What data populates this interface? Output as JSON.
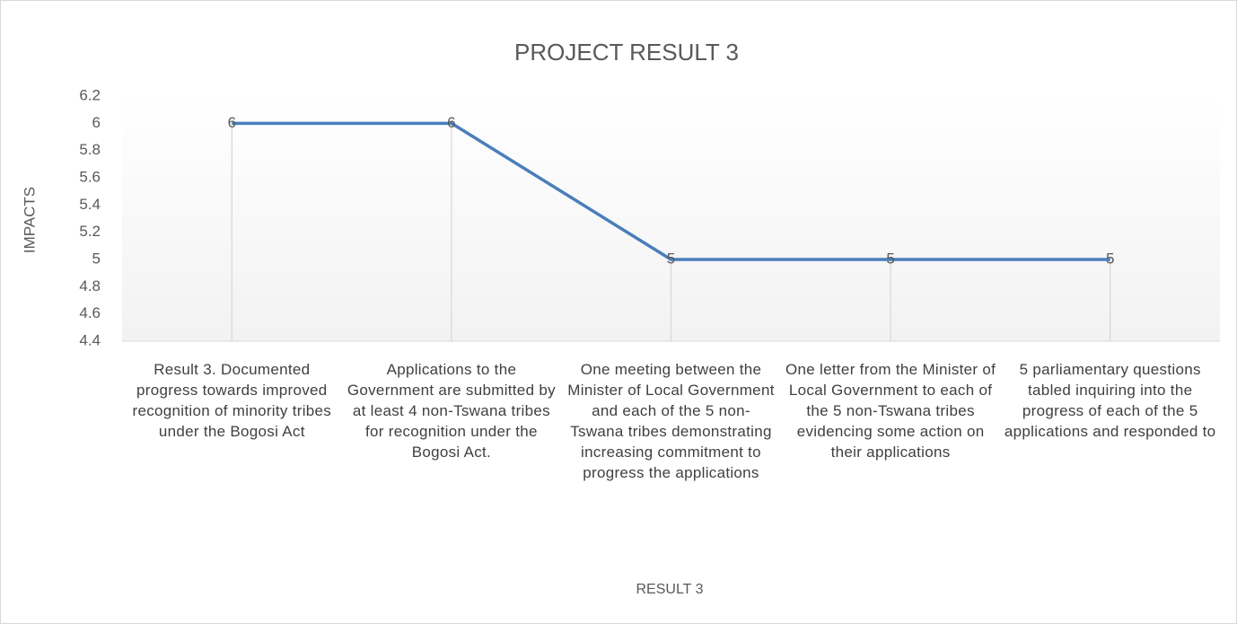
{
  "chart_data": {
    "type": "line",
    "title": "PROJECT RESULT 3",
    "x_label": "RESULT 3",
    "y_label": "IMPACTS",
    "categories": [
      "Result 3. Documented progress towards improved recognition of minority tribes under the Bogosi Act",
      "Applications to the Government are submitted by at least 4 non-Tswana tribes for recognition  under the Bogosi Act.",
      "One meeting between the Minister of Local Government and each of the 5 non-Tswana tribes demonstrating increasing commitment to progress the applications",
      "One letter from the Minister of Local Government to each of the 5 non-Tswana tribes evidencing some action on their applications",
      "5 parliamentary questions tabled inquiring into the progress of each of the 5 applications and responded to"
    ],
    "series": [
      {
        "name": "IMPACTS",
        "color": "#4a7ebb",
        "values": [
          6,
          6,
          5,
          5,
          5
        ]
      }
    ],
    "ylim": [
      4.4,
      6.2
    ],
    "yticks": [
      4.4,
      4.6,
      4.8,
      5,
      5.2,
      5.4,
      5.6,
      5.8,
      6,
      6.2
    ],
    "data_labels": true,
    "drop_lines": true,
    "legend": false,
    "grid": false
  }
}
